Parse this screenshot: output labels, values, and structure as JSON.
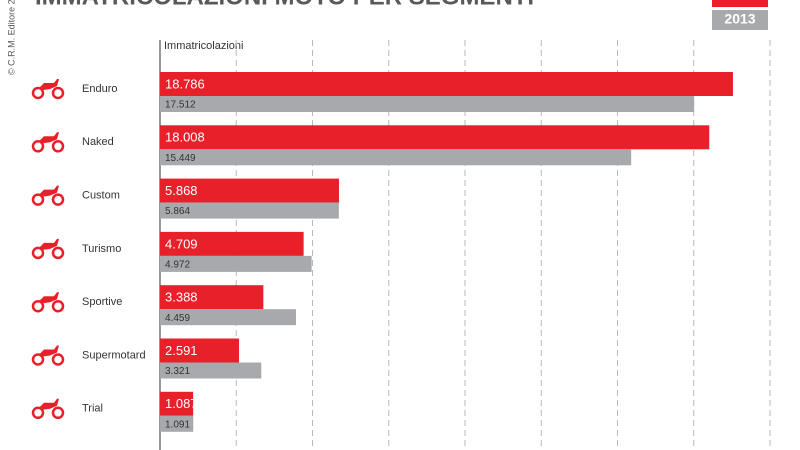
{
  "chart_data": {
    "type": "bar",
    "orientation": "horizontal",
    "title": "IMMATRICOLAZIONI MOTO PER SEGMENTI",
    "credit": "© C.R.M. Editore 2",
    "x_label": "Immatricolazioni",
    "categories": [
      "Enduro",
      "Naked",
      "Custom",
      "Turismo",
      "Sportive",
      "Supermotard",
      "Trial"
    ],
    "series": [
      {
        "color": "#e8202a",
        "values": [
          18786,
          18008,
          5868,
          4709,
          3388,
          2591,
          1087
        ],
        "value_labels": [
          "18.786",
          "18.008",
          "5.868",
          "4.709",
          "3.388",
          "2.591",
          "1.087"
        ]
      },
      {
        "name": "2013",
        "color": "#a7a9ac",
        "values": [
          17512,
          15449,
          5864,
          4972,
          4459,
          3321,
          1091
        ],
        "value_labels": [
          "17.512",
          "15.449",
          "5.864",
          "4.972",
          "4.459",
          "3.321",
          "1.091"
        ]
      }
    ],
    "xlim": [
      0,
      20000
    ],
    "xticks": [
      2500,
      5000,
      7500,
      10000,
      12500,
      15000,
      17500,
      20000
    ],
    "grid": true
  }
}
